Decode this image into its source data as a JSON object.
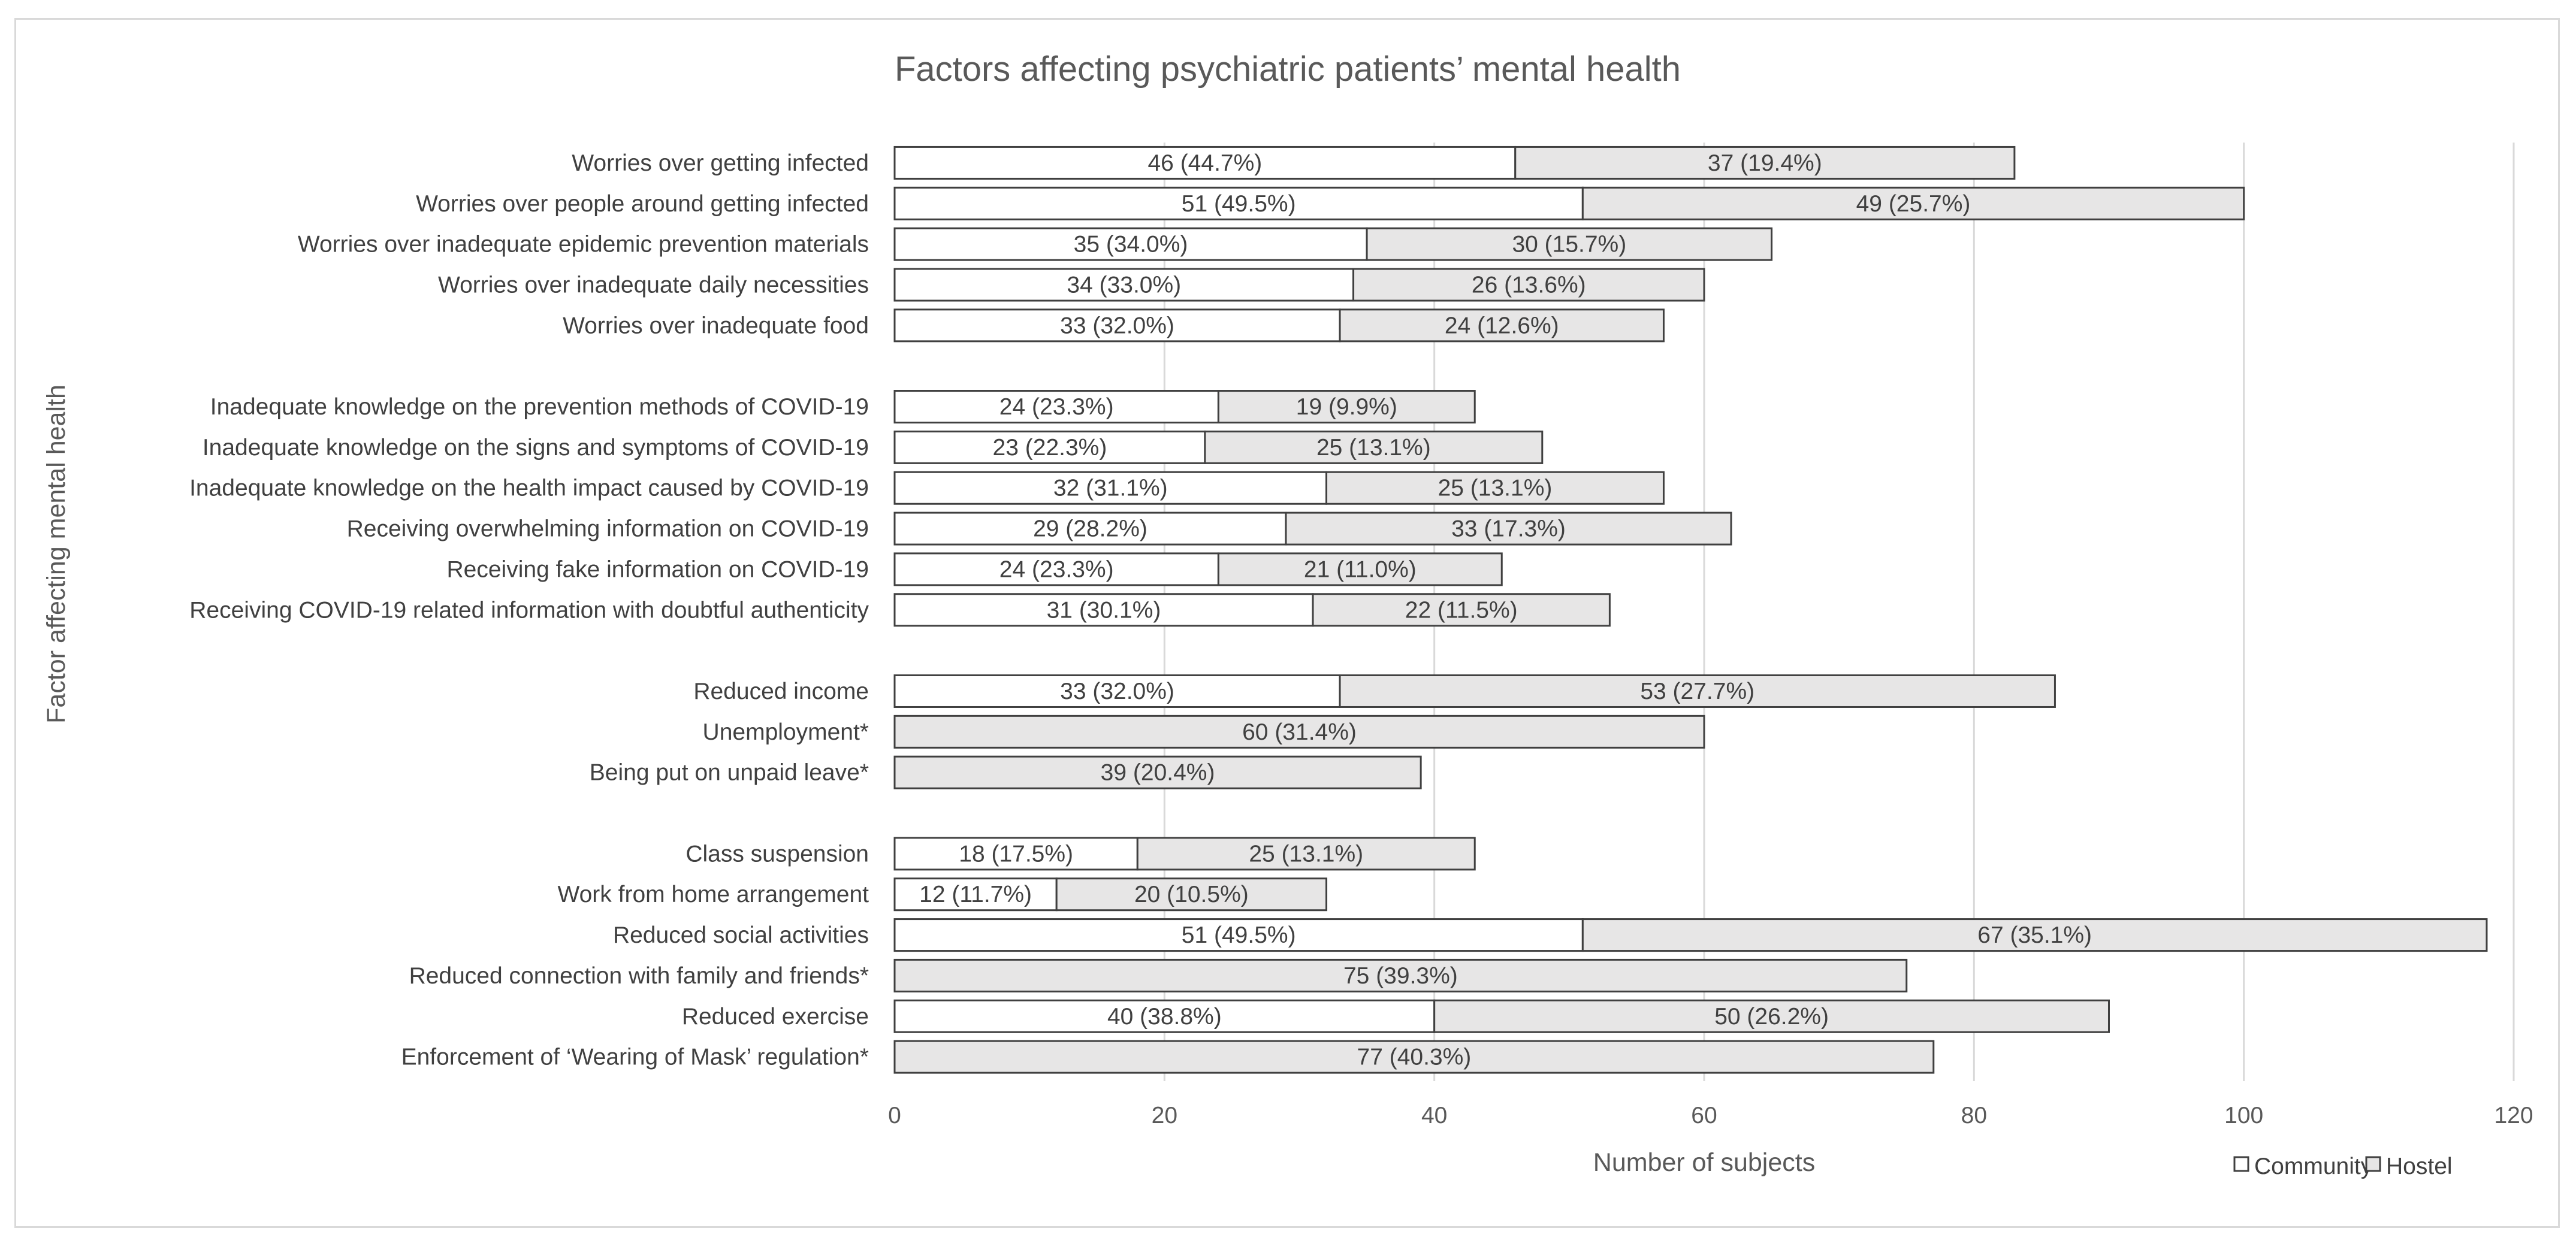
{
  "chart_data": {
    "type": "bar",
    "orientation": "horizontal",
    "stacked": true,
    "title": "Factors affecting psychiatric patients’ mental health",
    "xlabel": "Number of subjects",
    "ylabel": "Factor affecting mental health",
    "xlim": [
      0,
      120
    ],
    "xticks": [
      "0",
      "20",
      "40",
      "60",
      "80",
      "100",
      "120"
    ],
    "grid": "vertical",
    "legend_position": "bottom-right",
    "categories": [
      "Worries over getting infected",
      "Worries over people around getting infected",
      "Worries over inadequate epidemic prevention materials",
      "Worries over inadequate daily necessities",
      "Worries over inadequate food",
      "",
      "Inadequate knowledge on the prevention methods of COVID-19",
      "Inadequate knowledge on the signs and symptoms of COVID-19",
      "Inadequate knowledge on the health impact caused by COVID-19",
      "Receiving overwhelming information on COVID-19",
      "Receiving fake information on COVID-19",
      "Receiving COVID-19 related information with doubtful authenticity",
      "",
      "Reduced income",
      "Unemployment*",
      "Being put on unpaid leave*",
      "",
      "Class suspension",
      "Work from home arrangement",
      "Reduced social activities",
      "Reduced connection with family and friends*",
      "Reduced exercise",
      "Enforcement of ‘Wearing of Mask’ regulation*"
    ],
    "series": [
      {
        "name": "Community",
        "color": "#ffffff",
        "values": [
          46,
          51,
          35,
          34,
          33,
          null,
          24,
          23,
          32,
          29,
          24,
          31,
          null,
          33,
          0,
          0,
          null,
          18,
          12,
          51,
          0,
          40,
          0
        ],
        "labels": [
          "46 (44.7%)",
          "51 (49.5%)",
          "35 (34.0%)",
          "34 (33.0%)",
          "33 (32.0%)",
          "",
          "24 (23.3%)",
          "23 (22.3%)",
          "32 (31.1%)",
          "29 (28.2%)",
          "24 (23.3%)",
          "31 (30.1%)",
          "",
          "33 (32.0%)",
          "",
          "",
          "",
          "18 (17.5%)",
          "12 (11.7%)",
          "51 (49.5%)",
          "",
          "40 (38.8%)",
          ""
        ]
      },
      {
        "name": "Hostel",
        "color": "#e7e6e6",
        "values": [
          37,
          49,
          30,
          26,
          24,
          null,
          19,
          25,
          25,
          33,
          21,
          22,
          null,
          53,
          60,
          39,
          null,
          25,
          20,
          67,
          75,
          50,
          77
        ],
        "labels": [
          "37 (19.4%)",
          "49 (25.7%)",
          "30 (15.7%)",
          "26 (13.6%)",
          "24 (12.6%)",
          "",
          "19 (9.9%)",
          "25 (13.1%)",
          "25 (13.1%)",
          "33 (17.3%)",
          "21 (11.0%)",
          "22 (11.5%)",
          "",
          "53 (27.7%)",
          "60 (31.4%)",
          "39 (20.4%)",
          "",
          "25 (13.1%)",
          "20 (10.5%)",
          "67 (35.1%)",
          "75 (39.3%)",
          "50 (26.2%)",
          "77 (40.3%)"
        ]
      }
    ]
  }
}
